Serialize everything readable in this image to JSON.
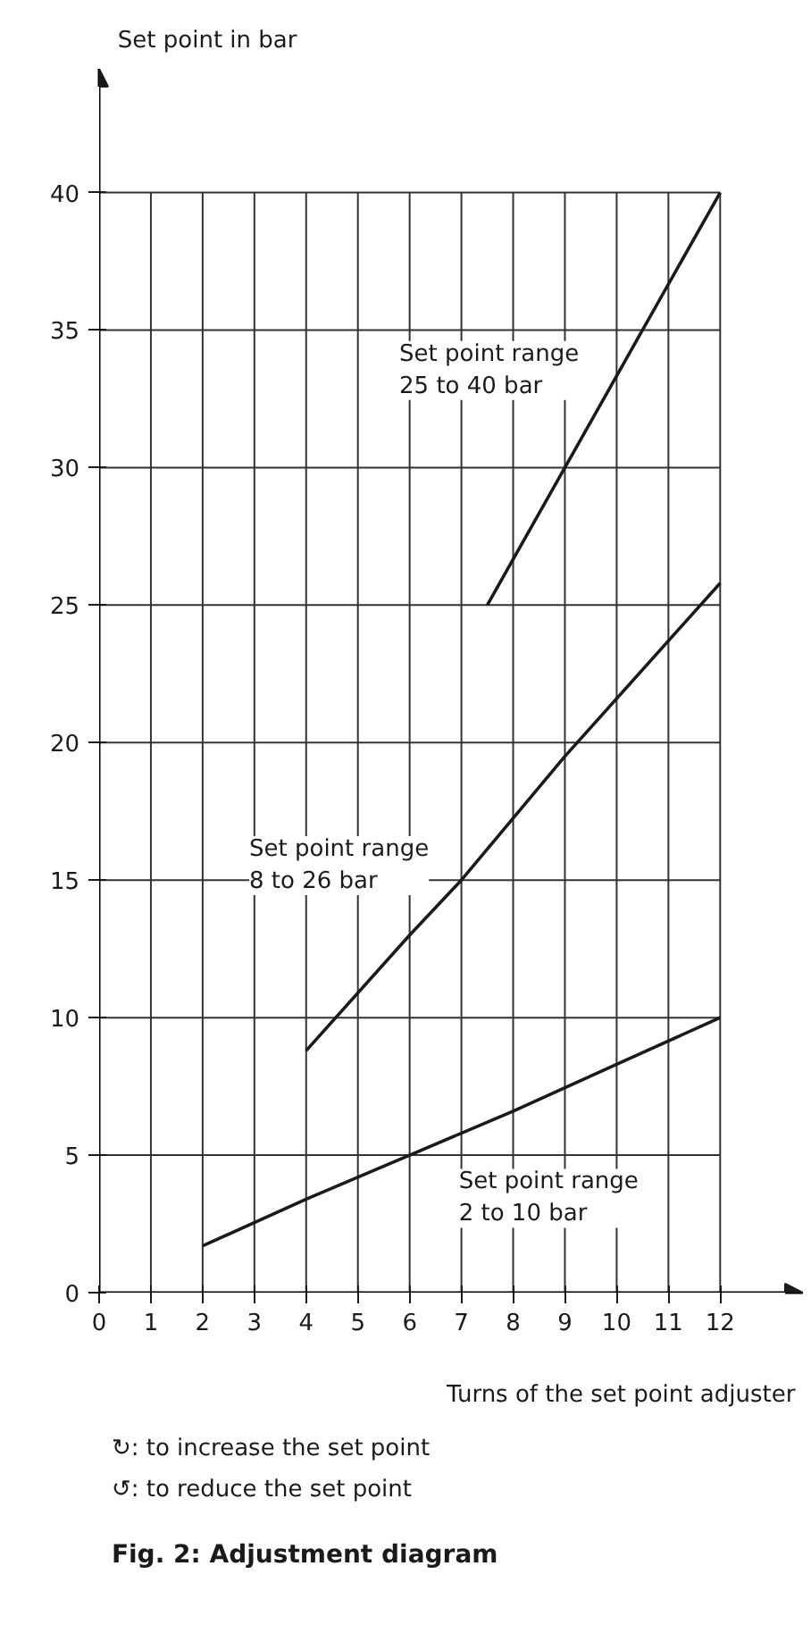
{
  "chart_data": {
    "type": "line",
    "title": "Fig. 2:  Adjustment diagram",
    "xlabel": "Turns of the set point adjuster",
    "ylabel": "Set point in bar",
    "xlim": [
      0,
      13.6
    ],
    "ylim": [
      0,
      44.5
    ],
    "xticks": [
      0,
      1,
      2,
      3,
      4,
      5,
      6,
      7,
      8,
      9,
      10,
      11,
      12
    ],
    "yticks": [
      0,
      5,
      10,
      15,
      20,
      25,
      30,
      35,
      40
    ],
    "grid": true,
    "line_style": "solid",
    "series": [
      {
        "name": "Set point range\n2 to 10 bar",
        "color": "#1a1a1a",
        "x": [
          2,
          4,
          6,
          8,
          10,
          12
        ],
        "values": [
          1.7,
          3.4,
          5,
          6.6,
          8.3,
          10
        ]
      },
      {
        "name": "Set point range\n8 to 26 bar",
        "color": "#1a1a1a",
        "x": [
          4,
          6,
          7,
          9,
          12
        ],
        "values": [
          8.8,
          13,
          15,
          19.5,
          25.8
        ]
      },
      {
        "name": "Set point range\n25 to 40 bar",
        "color": "#1a1a1a",
        "x": [
          7.5,
          9,
          12
        ],
        "values": [
          25,
          30,
          40
        ]
      }
    ],
    "annotations": [
      "↻: to increase the set point",
      "↺: to reduce the set point"
    ]
  }
}
